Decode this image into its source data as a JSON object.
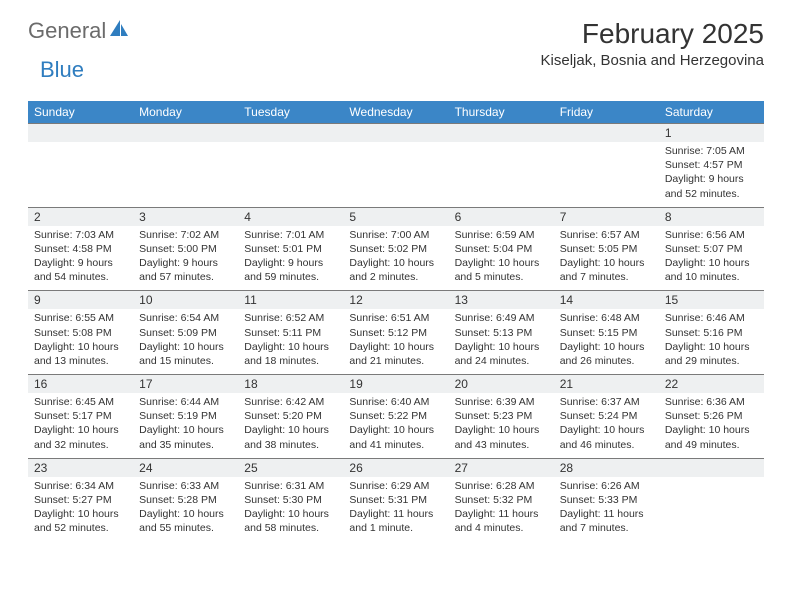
{
  "brand": {
    "word1": "General",
    "word2": "Blue"
  },
  "header": {
    "month": "February 2025",
    "location": "Kiseljak, Bosnia and Herzegovina"
  },
  "colors": {
    "header_bg": "#3b86c7",
    "header_text": "#ffffff",
    "band_bg": "#eef0f1",
    "band_border": "#7a7a7a",
    "text": "#333333",
    "logo_gray": "#6b6b6b",
    "logo_blue": "#2f7dbf",
    "page_bg": "#ffffff"
  },
  "days": [
    "Sunday",
    "Monday",
    "Tuesday",
    "Wednesday",
    "Thursday",
    "Friday",
    "Saturday"
  ],
  "weeks": [
    {
      "nums": [
        "",
        "",
        "",
        "",
        "",
        "",
        "1"
      ],
      "cells": [
        {},
        {},
        {},
        {},
        {},
        {},
        {
          "sr": "Sunrise: 7:05 AM",
          "ss": "Sunset: 4:57 PM",
          "d1": "Daylight: 9 hours",
          "d2": "and 52 minutes."
        }
      ]
    },
    {
      "nums": [
        "2",
        "3",
        "4",
        "5",
        "6",
        "7",
        "8"
      ],
      "cells": [
        {
          "sr": "Sunrise: 7:03 AM",
          "ss": "Sunset: 4:58 PM",
          "d1": "Daylight: 9 hours",
          "d2": "and 54 minutes."
        },
        {
          "sr": "Sunrise: 7:02 AM",
          "ss": "Sunset: 5:00 PM",
          "d1": "Daylight: 9 hours",
          "d2": "and 57 minutes."
        },
        {
          "sr": "Sunrise: 7:01 AM",
          "ss": "Sunset: 5:01 PM",
          "d1": "Daylight: 9 hours",
          "d2": "and 59 minutes."
        },
        {
          "sr": "Sunrise: 7:00 AM",
          "ss": "Sunset: 5:02 PM",
          "d1": "Daylight: 10 hours",
          "d2": "and 2 minutes."
        },
        {
          "sr": "Sunrise: 6:59 AM",
          "ss": "Sunset: 5:04 PM",
          "d1": "Daylight: 10 hours",
          "d2": "and 5 minutes."
        },
        {
          "sr": "Sunrise: 6:57 AM",
          "ss": "Sunset: 5:05 PM",
          "d1": "Daylight: 10 hours",
          "d2": "and 7 minutes."
        },
        {
          "sr": "Sunrise: 6:56 AM",
          "ss": "Sunset: 5:07 PM",
          "d1": "Daylight: 10 hours",
          "d2": "and 10 minutes."
        }
      ]
    },
    {
      "nums": [
        "9",
        "10",
        "11",
        "12",
        "13",
        "14",
        "15"
      ],
      "cells": [
        {
          "sr": "Sunrise: 6:55 AM",
          "ss": "Sunset: 5:08 PM",
          "d1": "Daylight: 10 hours",
          "d2": "and 13 minutes."
        },
        {
          "sr": "Sunrise: 6:54 AM",
          "ss": "Sunset: 5:09 PM",
          "d1": "Daylight: 10 hours",
          "d2": "and 15 minutes."
        },
        {
          "sr": "Sunrise: 6:52 AM",
          "ss": "Sunset: 5:11 PM",
          "d1": "Daylight: 10 hours",
          "d2": "and 18 minutes."
        },
        {
          "sr": "Sunrise: 6:51 AM",
          "ss": "Sunset: 5:12 PM",
          "d1": "Daylight: 10 hours",
          "d2": "and 21 minutes."
        },
        {
          "sr": "Sunrise: 6:49 AM",
          "ss": "Sunset: 5:13 PM",
          "d1": "Daylight: 10 hours",
          "d2": "and 24 minutes."
        },
        {
          "sr": "Sunrise: 6:48 AM",
          "ss": "Sunset: 5:15 PM",
          "d1": "Daylight: 10 hours",
          "d2": "and 26 minutes."
        },
        {
          "sr": "Sunrise: 6:46 AM",
          "ss": "Sunset: 5:16 PM",
          "d1": "Daylight: 10 hours",
          "d2": "and 29 minutes."
        }
      ]
    },
    {
      "nums": [
        "16",
        "17",
        "18",
        "19",
        "20",
        "21",
        "22"
      ],
      "cells": [
        {
          "sr": "Sunrise: 6:45 AM",
          "ss": "Sunset: 5:17 PM",
          "d1": "Daylight: 10 hours",
          "d2": "and 32 minutes."
        },
        {
          "sr": "Sunrise: 6:44 AM",
          "ss": "Sunset: 5:19 PM",
          "d1": "Daylight: 10 hours",
          "d2": "and 35 minutes."
        },
        {
          "sr": "Sunrise: 6:42 AM",
          "ss": "Sunset: 5:20 PM",
          "d1": "Daylight: 10 hours",
          "d2": "and 38 minutes."
        },
        {
          "sr": "Sunrise: 6:40 AM",
          "ss": "Sunset: 5:22 PM",
          "d1": "Daylight: 10 hours",
          "d2": "and 41 minutes."
        },
        {
          "sr": "Sunrise: 6:39 AM",
          "ss": "Sunset: 5:23 PM",
          "d1": "Daylight: 10 hours",
          "d2": "and 43 minutes."
        },
        {
          "sr": "Sunrise: 6:37 AM",
          "ss": "Sunset: 5:24 PM",
          "d1": "Daylight: 10 hours",
          "d2": "and 46 minutes."
        },
        {
          "sr": "Sunrise: 6:36 AM",
          "ss": "Sunset: 5:26 PM",
          "d1": "Daylight: 10 hours",
          "d2": "and 49 minutes."
        }
      ]
    },
    {
      "nums": [
        "23",
        "24",
        "25",
        "26",
        "27",
        "28",
        ""
      ],
      "cells": [
        {
          "sr": "Sunrise: 6:34 AM",
          "ss": "Sunset: 5:27 PM",
          "d1": "Daylight: 10 hours",
          "d2": "and 52 minutes."
        },
        {
          "sr": "Sunrise: 6:33 AM",
          "ss": "Sunset: 5:28 PM",
          "d1": "Daylight: 10 hours",
          "d2": "and 55 minutes."
        },
        {
          "sr": "Sunrise: 6:31 AM",
          "ss": "Sunset: 5:30 PM",
          "d1": "Daylight: 10 hours",
          "d2": "and 58 minutes."
        },
        {
          "sr": "Sunrise: 6:29 AM",
          "ss": "Sunset: 5:31 PM",
          "d1": "Daylight: 11 hours",
          "d2": "and 1 minute."
        },
        {
          "sr": "Sunrise: 6:28 AM",
          "ss": "Sunset: 5:32 PM",
          "d1": "Daylight: 11 hours",
          "d2": "and 4 minutes."
        },
        {
          "sr": "Sunrise: 6:26 AM",
          "ss": "Sunset: 5:33 PM",
          "d1": "Daylight: 11 hours",
          "d2": "and 7 minutes."
        },
        {}
      ]
    }
  ]
}
